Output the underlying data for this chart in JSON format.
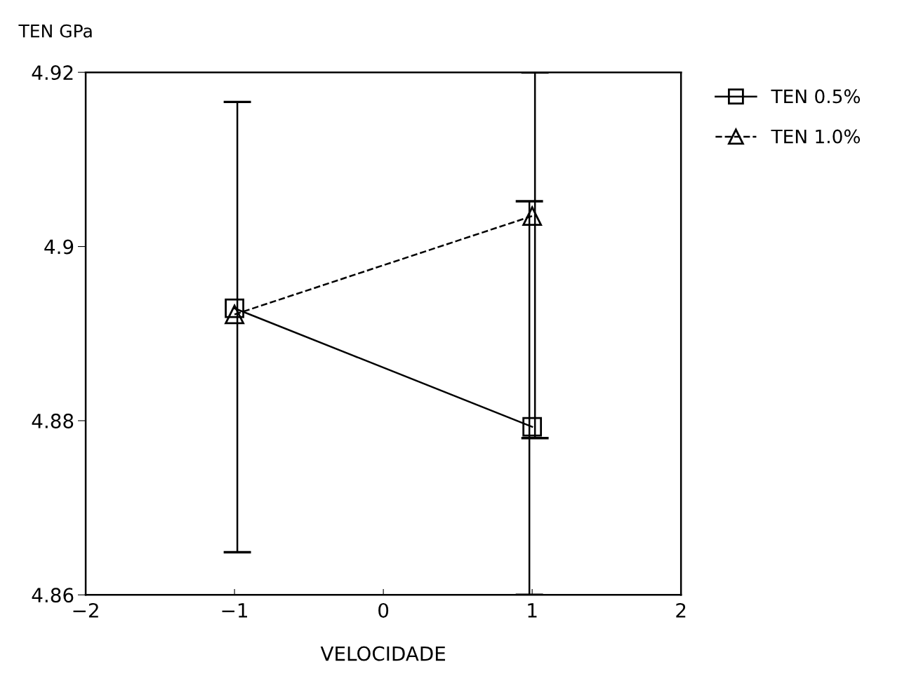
{
  "chart_data": {
    "type": "line",
    "ylabel": "TEN GPa",
    "xlabel": "VELOCIDADE",
    "x": [
      -1,
      1
    ],
    "xlim": [
      -2,
      2
    ],
    "xticks": [
      {
        "value": -2,
        "label": "−2"
      },
      {
        "value": -1,
        "label": "−1"
      },
      0,
      1,
      2
    ],
    "ylim": [
      4.86,
      4.92
    ],
    "yticks": [
      4.86,
      4.88,
      4.9,
      4.92
    ],
    "grid": false,
    "legend": "top right",
    "series": [
      {
        "name": "TEN 0.5%",
        "color": "#000000",
        "values": [
          4.8929,
          4.8793
        ],
        "marker": "square",
        "line_style": "solid",
        "errors": [
          [
            4.8649,
            4.9166
          ],
          [
            4.878,
            4.92
          ]
        ]
      },
      {
        "name": "TEN 1.0%",
        "color": "#000000",
        "values": [
          4.8922,
          4.9035
        ],
        "marker": "triangle",
        "line_style": "dashed",
        "errors": [
          null,
          [
            4.86,
            4.9052
          ]
        ]
      }
    ]
  }
}
